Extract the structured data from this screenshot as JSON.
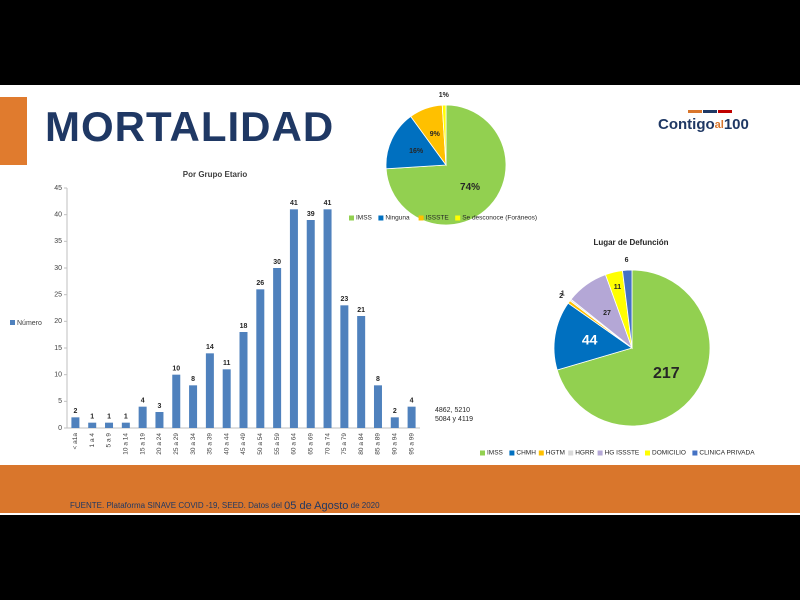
{
  "title": "MORTALIDAD",
  "logo": [
    "Contigo",
    "al",
    "100"
  ],
  "footer": {
    "source": "FUENTE. Plataforma SINAVE COVID -19, SEED. Datos del",
    "date": "05 de Agosto",
    "year": "de 2020"
  },
  "chart_data": [
    {
      "type": "bar",
      "title": "Por Grupo Etario",
      "categories": [
        "< a1a",
        "1 a 4",
        "5 a 9",
        "10 a 14",
        "15 a 19",
        "20 a 24",
        "25 a 29",
        "30 a 34",
        "35 a 39",
        "40 a 44",
        "45 a 49",
        "50 a 54",
        "55 a 59",
        "60 a 64",
        "65 a 69",
        "70 a 74",
        "75 a 79",
        "80 a 84",
        "85 a 89",
        "90 a 94",
        "95 a 99"
      ],
      "series": [
        {
          "name": "Número",
          "color": "#4f81bd",
          "values": [
            2,
            1,
            1,
            1,
            4,
            3,
            10,
            8,
            14,
            11,
            18,
            26,
            30,
            41,
            39,
            41,
            23,
            21,
            8,
            2,
            4
          ]
        }
      ],
      "ylim": [
        0,
        45
      ],
      "yticks": [
        0,
        5,
        10,
        15,
        20,
        25,
        30,
        35,
        40,
        45
      ],
      "legend": "left",
      "annotation": [
        "4862, 5210",
        "5084 y 4119"
      ]
    },
    {
      "type": "pie",
      "categories": [
        "IMSS",
        "Ninguna",
        "ISSSTE",
        "Se desconoce (Foráneos)"
      ],
      "values": [
        74,
        16,
        9,
        1
      ],
      "value_labels": [
        "74%",
        "16%",
        "9%",
        "1%"
      ],
      "colors": [
        "#92d050",
        "#0070c0",
        "#ffc000",
        "#ffff00"
      ],
      "legend": "bottom"
    },
    {
      "type": "pie",
      "title": "Lugar de Defunción",
      "categories": [
        "IMSS",
        "CHMH",
        "HGTM",
        "HGRR",
        "HG ISSSTE",
        "DOMICILIO",
        "CLINICA PRIVADA"
      ],
      "values": [
        217,
        44,
        2,
        1,
        27,
        11,
        6
      ],
      "colors": [
        "#92d050",
        "#0070c0",
        "#ffc000",
        "#d9d9d9",
        "#b4a7d6",
        "#ffff00",
        "#4472c4"
      ],
      "legend": "bottom"
    }
  ]
}
